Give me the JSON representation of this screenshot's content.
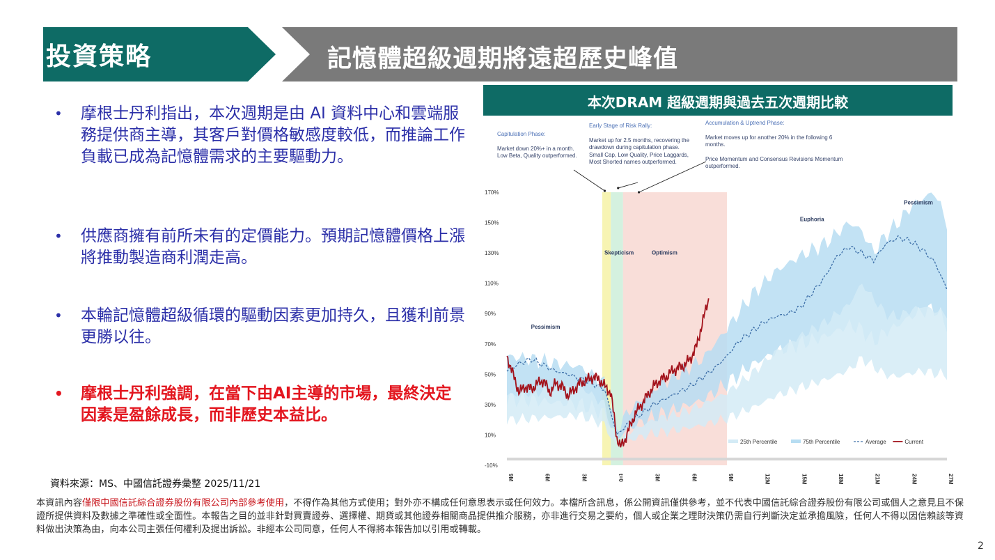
{
  "header": {
    "section": "投資策略",
    "title": "記憶體超級週期將遠超歷史峰值",
    "colors": {
      "section_bg": "#0e6b65",
      "title_bg": "#7a7a7a"
    }
  },
  "bullets": [
    {
      "text": "摩根士丹利指出，本次週期是由 AI 資料中心和雲端服務提供商主導，其客戶對價格敏感度較低，而推論工作負載已成為記憶體需求的主要驅動力。",
      "style": "blue"
    },
    {
      "text": "供應商擁有前所未有的定價能力。預期記憶體價格上漲將推動製造商利潤走高。",
      "style": "blue"
    },
    {
      "text": "本輪記憶體超級循環的驅動因素更加持久，且獲利前景更勝以往。",
      "style": "blue"
    },
    {
      "text": "摩根士丹利強調，在當下由AI主導的市場，最終決定因素是盈餘成長，而非歷史本益比。",
      "style": "red"
    }
  ],
  "bullet_marker": "•",
  "source": "資料來源：MS、中國信託證券彙整 2025/11/21",
  "disclaimer": {
    "part1": "本資訊內容",
    "highlight": "僅限中國信託綜合證券股份有限公司內部參考使用",
    "part2": "，不得作為其他方式使用；對外亦不構成任何意思表示或任何效力。本檔所含訊息，係公開資訊僅供參考，並不代表中國信託綜合證券股份有限公司或個人之意見且不保證所提供資料及數據之準確性或全面性。本報告之目的並非針對買賣證券、選擇權、期貨或其他證券相關商品提供推介服務，亦非進行交易之要約，個人或企業之理財決策仍需自行判斷決定並承擔風險，任何人不得以因信賴該等資料做出決策為由，向本公司主張任何權利及提出訴訟。非經本公司同意，任何人不得將本報告加以引用或轉載。"
  },
  "page_number": "2",
  "chart_title": "本次DRAM 超級週期與過去五次週期比較",
  "annotations": [
    {
      "heading": "Capitulation Phase:",
      "lines": [
        "Market down 20%+ in a month.",
        "Low Beta, Quality outperformed."
      ]
    },
    {
      "heading": "Early Stage of Risk Rally:",
      "lines": [
        "Market up for 2.5 months, recovering the",
        "drawdown during capitulation phase.",
        "Small Cap, Low Quality, Price Laggards,",
        "Most Shorted names outperformed."
      ]
    },
    {
      "heading": "Accumulation & Uptrend Phase:",
      "lines": [
        "Market moves up for another 20% in the following 6",
        "months.",
        "",
        "Price Momentum and Consensus Revisions Momentum",
        "outperformed."
      ]
    }
  ],
  "chart_data": {
    "type": "line",
    "x_ticks": [
      "9M",
      "6M",
      "3M",
      "t=0",
      "3M",
      "6M",
      "9M",
      "12M",
      "15M",
      "18M",
      "21M",
      "24M",
      "27M"
    ],
    "x_range_months": [
      -9,
      27
    ],
    "y_ticks": [
      "-10%",
      "10%",
      "30%",
      "50%",
      "70%",
      "90%",
      "110%",
      "130%",
      "150%",
      "170%"
    ],
    "ylim": [
      -10,
      170
    ],
    "phases": [
      {
        "name": "Capitulation",
        "from": -1.2,
        "to": -0.5,
        "color": "#f6f2a6"
      },
      {
        "name": "Skepticism",
        "from": -0.5,
        "to": 0.5,
        "color": "#cdeed9",
        "label": "Skepticism"
      },
      {
        "name": "Optimism",
        "from": 0.5,
        "to": 9,
        "color": "#f8d8d2",
        "label": "Optimism"
      }
    ],
    "region_labels": [
      {
        "text": "Pessimism",
        "x": -6,
        "y": 80
      },
      {
        "text": "Euphoria",
        "x": 16,
        "y": 151
      },
      {
        "text": "Pessimism",
        "x": 24.5,
        "y": 162
      }
    ],
    "series": [
      {
        "name": "25th Percentile",
        "color": "#d4ebf6",
        "x": [
          -9,
          -7,
          -5,
          -3,
          -1,
          0,
          1,
          3,
          5,
          7,
          9,
          11,
          13,
          15,
          17,
          19,
          20,
          21,
          22,
          23,
          24,
          25,
          26,
          27
        ],
        "y": [
          36,
          38,
          40,
          42,
          30,
          2,
          12,
          20,
          24,
          30,
          38,
          50,
          65,
          75,
          84,
          96,
          110,
          100,
          90,
          88,
          92,
          95,
          92,
          90
        ]
      },
      {
        "name": "75th Percentile",
        "color": "#b7ddf2",
        "x": [
          -9,
          -7,
          -5,
          -3,
          -1,
          0,
          1,
          3,
          5,
          7,
          9,
          11,
          13,
          15,
          17,
          19,
          20,
          21,
          22,
          23,
          24,
          25,
          26,
          27
        ],
        "y": [
          62,
          60,
          57,
          55,
          44,
          14,
          26,
          40,
          50,
          60,
          80,
          102,
          118,
          128,
          136,
          150,
          145,
          130,
          142,
          150,
          160,
          166,
          170,
          150
        ]
      },
      {
        "name": "Average",
        "color": "#3d6fa8",
        "style": "dashed",
        "x": [
          -9,
          -8,
          -7,
          -6,
          -5,
          -4,
          -3,
          -2,
          -1,
          0,
          1,
          2,
          3,
          4,
          5,
          6,
          7,
          8,
          9,
          10,
          11,
          12,
          13,
          14,
          15,
          16,
          17,
          18,
          19,
          20,
          21,
          22,
          23,
          24,
          25,
          26,
          27
        ],
        "y": [
          52,
          57,
          60,
          56,
          52,
          50,
          47,
          44,
          40,
          10,
          18,
          24,
          30,
          34,
          38,
          42,
          48,
          54,
          62,
          72,
          78,
          84,
          88,
          90,
          94,
          104,
          114,
          128,
          134,
          130,
          125,
          136,
          140,
          138,
          132,
          124,
          106
        ]
      },
      {
        "name": "Current",
        "color": "#a3131c",
        "x": [
          -9,
          -8.5,
          -8,
          -7.5,
          -7,
          -6.5,
          -6,
          -5.5,
          -5,
          -4.5,
          -4,
          -3.5,
          -3,
          -2.5,
          -2,
          -1.5,
          -1,
          -0.5,
          0,
          0.3,
          0.6,
          1,
          1.5,
          2,
          2.5,
          3,
          3.5,
          4,
          4.5,
          5,
          5.5,
          6,
          6.5,
          7,
          7.5
        ],
        "y": [
          62,
          50,
          38,
          42,
          40,
          44,
          46,
          38,
          44,
          42,
          36,
          40,
          44,
          46,
          48,
          47,
          42,
          38,
          8,
          2,
          6,
          14,
          24,
          30,
          36,
          42,
          46,
          48,
          52,
          54,
          56,
          60,
          68,
          84,
          100
        ]
      }
    ]
  }
}
